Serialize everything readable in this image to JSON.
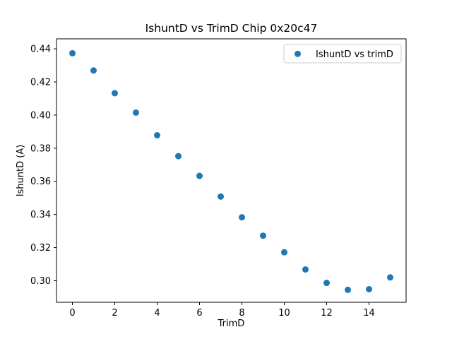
{
  "chart_data": {
    "type": "scatter",
    "title": "IshuntD vs TrimD Chip 0x20c47",
    "xlabel": "TrimD",
    "ylabel": "IshuntD (A)",
    "legend": {
      "position": "upper right",
      "entries": [
        "IshuntD vs trimD"
      ]
    },
    "x": [
      0,
      1,
      2,
      3,
      4,
      5,
      6,
      7,
      8,
      9,
      10,
      11,
      12,
      13,
      14,
      15
    ],
    "y": [
      0.4373,
      0.4269,
      0.4132,
      0.4015,
      0.3878,
      0.3752,
      0.3633,
      0.3508,
      0.3383,
      0.3272,
      0.3172,
      0.3068,
      0.2987,
      0.2945,
      0.2949,
      0.302
    ],
    "xlim": [
      -0.75,
      15.75
    ],
    "ylim": [
      0.287,
      0.446
    ],
    "xticks": [
      {
        "v": 0,
        "label": "0"
      },
      {
        "v": 2,
        "label": "2"
      },
      {
        "v": 4,
        "label": "4"
      },
      {
        "v": 6,
        "label": "6"
      },
      {
        "v": 8,
        "label": "8"
      },
      {
        "v": 10,
        "label": "10"
      },
      {
        "v": 12,
        "label": "12"
      },
      {
        "v": 14,
        "label": "14"
      }
    ],
    "yticks": [
      {
        "v": 0.3,
        "label": "0.30"
      },
      {
        "v": 0.32,
        "label": "0.32"
      },
      {
        "v": 0.34,
        "label": "0.34"
      },
      {
        "v": 0.36,
        "label": "0.36"
      },
      {
        "v": 0.38,
        "label": "0.38"
      },
      {
        "v": 0.4,
        "label": "0.40"
      },
      {
        "v": 0.42,
        "label": "0.42"
      },
      {
        "v": 0.44,
        "label": "0.44"
      }
    ],
    "grid": false,
    "marker_color": "#1f77b4",
    "axis_color": "#000000",
    "legend_border_color": "#cccccc",
    "background_color": "#ffffff"
  }
}
